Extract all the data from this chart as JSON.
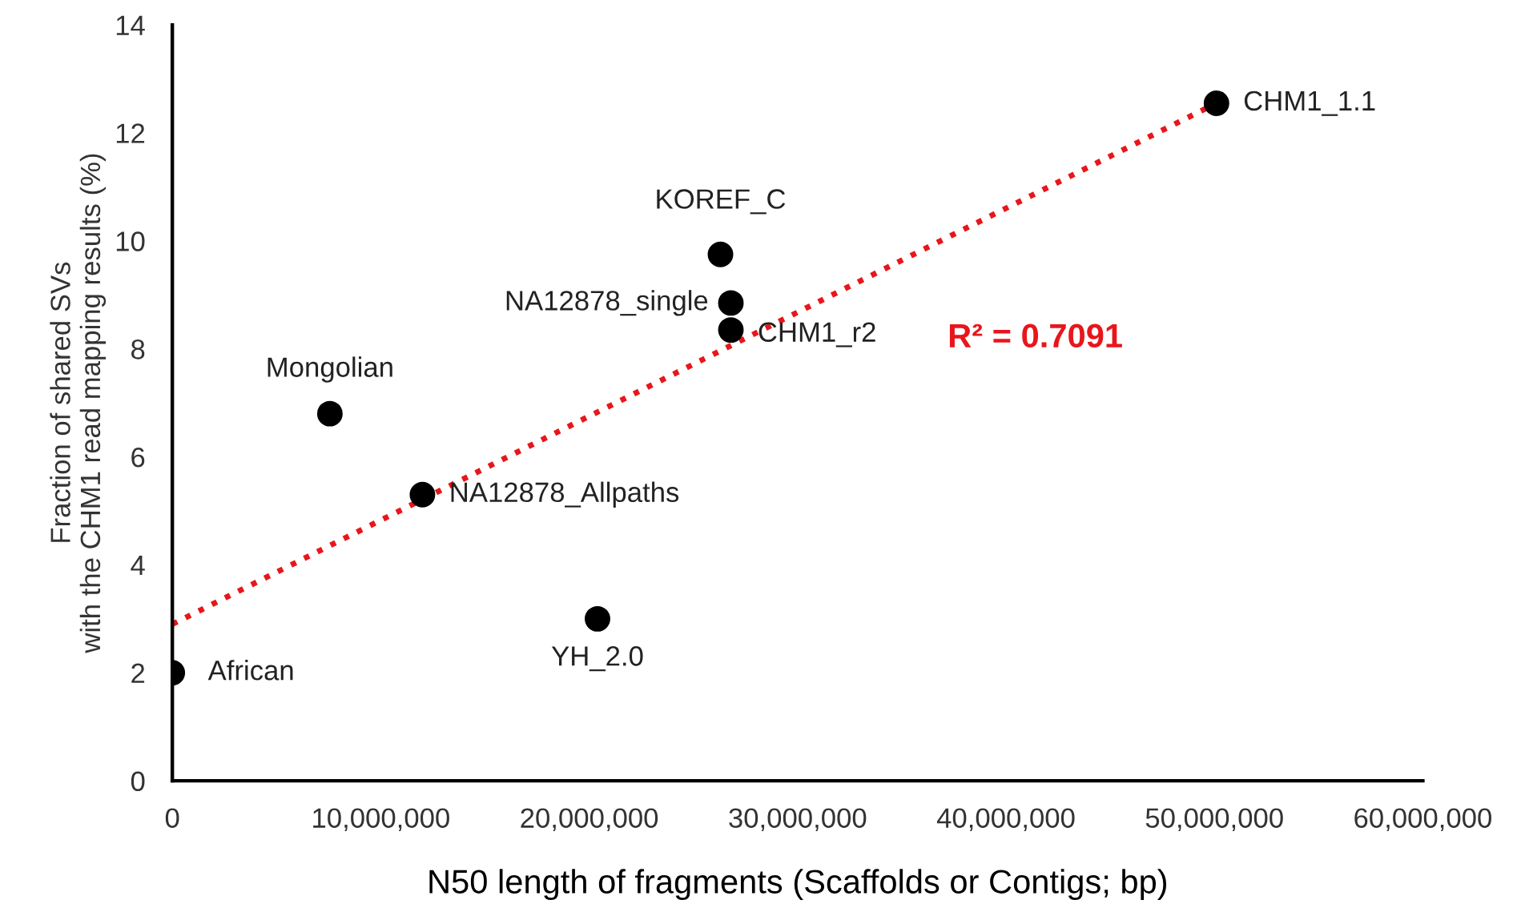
{
  "chart_data": {
    "type": "scatter",
    "xlabel": "N50 length of fragments (Scaffolds or Contigs; bp)",
    "ylabel": "Fraction of shared SVs\nwith the CHM1 read mapping results (%)",
    "xlim": [
      0,
      60000000
    ],
    "xticks": [
      {
        "value": 0,
        "label": "0"
      },
      {
        "value": 10000000,
        "label": "10,000,000"
      },
      {
        "value": 20000000,
        "label": "20,000,000"
      },
      {
        "value": 30000000,
        "label": "30,000,000"
      },
      {
        "value": 40000000,
        "label": "40,000,000"
      },
      {
        "value": 50000000,
        "label": "50,000,000"
      },
      {
        "value": 60000000,
        "label": "60,000,000"
      }
    ],
    "ylim": [
      0,
      14
    ],
    "yticks": [
      0,
      2,
      4,
      6,
      8,
      10,
      12,
      14
    ],
    "grid": false,
    "legend": false,
    "series": [
      {
        "marker": "circle",
        "color": "#000000",
        "x": [
          0,
          7560000,
          12000000,
          20400000,
          26300000,
          26800000,
          26800000,
          50100000
        ],
        "values": [
          2.0,
          6.8,
          5.3,
          3.0,
          9.75,
          8.85,
          8.35,
          12.55
        ]
      },
      {
        "type": "line",
        "line_style": "dotted",
        "color": "#e8161b",
        "x": [
          0,
          50100000
        ],
        "values": [
          2.9,
          12.55
        ]
      }
    ],
    "annotations": [
      {
        "text": "African",
        "x": 0,
        "y": 2.0
      },
      {
        "text": "Mongolian",
        "x": 7560000,
        "y": 6.8
      },
      {
        "text": "NA12878_Allpaths",
        "x": 12000000,
        "y": 5.3
      },
      {
        "text": "YH_2.0",
        "x": 20400000,
        "y": 3.0
      },
      {
        "text": "KOREF_C",
        "x": 26300000,
        "y": 9.75
      },
      {
        "text": "NA12878_single",
        "x": 26800000,
        "y": 8.85
      },
      {
        "text": "CHM1_r2",
        "x": 26800000,
        "y": 8.35
      },
      {
        "text": "CHM1_1.1",
        "x": 50100000,
        "y": 12.55
      },
      "R² = 0.7091"
    ]
  }
}
